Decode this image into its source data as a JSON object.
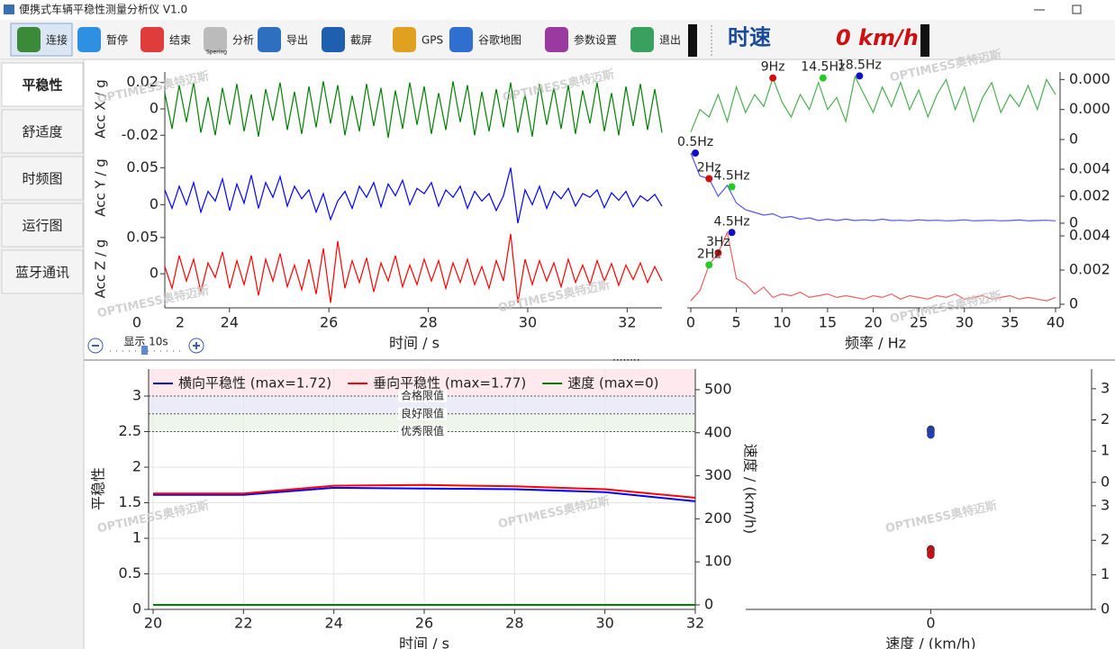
{
  "window": {
    "title": "便携式车辆平稳性测量分析仪 V1.0"
  },
  "toolbar": {
    "buttons": [
      "连接",
      "暂停",
      "结束",
      "分析",
      "导出",
      "截屏",
      "GPS",
      "谷歌地图",
      "参数设置",
      "退出"
    ],
    "icon_caption": "Spering",
    "speed_label": "时速",
    "speed_value": "0 km/h"
  },
  "tabs": [
    "平稳性",
    "舒适度",
    "时频图",
    "运行图",
    "蓝牙通讯"
  ],
  "watermark": "OPTIMESS奥特迈斯",
  "time_plot": {
    "type": "line",
    "x_label": "时间 / s",
    "xlim": [
      22.7,
      32.7
    ],
    "xticks": [
      24,
      26,
      28,
      30,
      32
    ],
    "clipped_tick_labels": [
      "0",
      "2"
    ],
    "zoom_label": "显示 10s",
    "panels": [
      {
        "name": "Acc X / g",
        "color": "#008000",
        "ylim": [
          -0.028,
          0.028
        ],
        "yticks": [
          {
            "value": 0.02,
            "label": "0.02"
          },
          0,
          {
            "value": -0.02,
            "label": "-0.02"
          }
        ],
        "values": [
          0.012,
          -0.015,
          0.018,
          -0.01,
          0.02,
          -0.018,
          0.009,
          -0.02,
          0.016,
          -0.012,
          0.019,
          -0.017,
          0.011,
          -0.021,
          0.015,
          -0.009,
          0.02,
          -0.016,
          0.013,
          -0.019,
          0.017,
          -0.014,
          0.021,
          -0.011,
          0.018,
          -0.02,
          0.01,
          -0.017,
          0.019,
          -0.013,
          0.016,
          -0.022,
          0.014,
          -0.015,
          0.02,
          -0.012,
          0.017,
          -0.019,
          0.012,
          -0.016,
          0.021,
          -0.01,
          0.018,
          -0.02,
          0.013,
          -0.017,
          0.015,
          -0.014,
          0.02,
          -0.018,
          0.011,
          -0.021,
          0.019,
          -0.012,
          0.016,
          -0.015,
          0.018,
          -0.019,
          0.014,
          -0.011,
          0.02,
          -0.017,
          0.012,
          -0.02,
          0.017,
          -0.013,
          0.019,
          -0.016,
          0.015,
          -0.018
        ]
      },
      {
        "name": "Acc Y / g",
        "color": "#0000ff",
        "ylim": [
          -0.03,
          0.076
        ],
        "yticks": [
          0.05,
          0
        ],
        "values": [
          0.02,
          -0.005,
          0.025,
          0.0,
          0.03,
          -0.01,
          0.018,
          0.005,
          0.035,
          -0.008,
          0.028,
          0.002,
          0.04,
          -0.005,
          0.03,
          0.01,
          0.038,
          -0.002,
          0.025,
          0.008,
          0.02,
          -0.01,
          0.015,
          -0.02,
          0.005,
          0.018,
          -0.005,
          0.025,
          0.01,
          0.03,
          -0.003,
          0.028,
          0.012,
          0.033,
          0.0,
          0.022,
          0.015,
          0.03,
          -0.002,
          0.02,
          0.01,
          0.025,
          -0.005,
          0.018,
          0.005,
          0.015,
          -0.008,
          0.012,
          0.05,
          -0.025,
          0.02,
          0.0,
          0.025,
          -0.005,
          0.018,
          0.008,
          0.022,
          -0.002,
          0.015,
          0.01,
          0.02,
          -0.004,
          0.016,
          0.006,
          0.018,
          -0.003,
          0.012,
          0.005,
          0.014,
          -0.002
        ]
      },
      {
        "name": "Acc Z / g",
        "color": "#ff0000",
        "ylim": [
          -0.047,
          0.061
        ],
        "yticks": [
          0.05,
          0
        ],
        "values": [
          0.01,
          -0.02,
          0.025,
          -0.01,
          0.02,
          -0.025,
          0.015,
          -0.005,
          0.03,
          -0.02,
          0.018,
          -0.015,
          0.025,
          -0.03,
          0.02,
          -0.01,
          0.028,
          -0.018,
          0.012,
          -0.022,
          0.02,
          -0.028,
          0.035,
          -0.04,
          0.045,
          -0.02,
          0.018,
          -0.012,
          0.022,
          -0.025,
          0.015,
          -0.01,
          0.025,
          -0.018,
          0.012,
          -0.015,
          0.02,
          -0.01,
          0.018,
          -0.02,
          0.015,
          -0.012,
          0.02,
          -0.015,
          0.01,
          -0.02,
          0.018,
          -0.01,
          0.055,
          -0.04,
          0.02,
          -0.015,
          0.018,
          -0.01,
          0.015,
          -0.018,
          0.02,
          -0.012,
          0.012,
          -0.015,
          0.018,
          -0.01,
          0.014,
          -0.016,
          0.012,
          -0.008,
          0.015,
          -0.012,
          0.01,
          -0.01
        ]
      }
    ]
  },
  "spectrum_plot": {
    "type": "line",
    "x_label": "频率 / Hz",
    "xlim": [
      0,
      40
    ],
    "xticks": [
      0,
      5,
      10,
      15,
      20,
      25,
      30,
      35,
      40
    ],
    "x": [
      0,
      1,
      2,
      3,
      4,
      5,
      6,
      7,
      8,
      9,
      10,
      11,
      12,
      13,
      14,
      15,
      16,
      17,
      18,
      19,
      20,
      21,
      22,
      23,
      24,
      25,
      26,
      27,
      28,
      29,
      30,
      31,
      32,
      33,
      34,
      35,
      36,
      37,
      38,
      39,
      40
    ],
    "panels": [
      {
        "color": "#4caf50",
        "ylim": [
          -3e-05,
          0.00045
        ],
        "yticks": [
          {
            "value": 0.0004,
            "label": "0.000"
          },
          {
            "value": 0.0002,
            "label": "0.000"
          },
          0
        ],
        "values": [
          5e-05,
          0.0002,
          0.00015,
          0.0003,
          0.00012,
          0.00035,
          0.00018,
          0.0003,
          0.00022,
          0.00041,
          0.00025,
          0.00015,
          0.0003,
          0.0002,
          0.00038,
          0.0002,
          0.00028,
          0.00012,
          0.00042,
          0.0003,
          0.00018,
          0.00035,
          0.00022,
          0.00038,
          0.0002,
          0.00033,
          0.00015,
          0.0003,
          0.0004,
          0.0002,
          0.00035,
          0.00012,
          0.00028,
          0.00038,
          0.00018,
          0.0003,
          0.00022,
          0.00036,
          0.0002,
          0.0004,
          0.0003
        ],
        "peaks": [
          {
            "label": "9Hz",
            "x": 9,
            "y": 0.00041,
            "color": "#d01010"
          },
          {
            "label": "14.5Hz",
            "x": 14.5,
            "y": 0.00041,
            "color": "#22cc22"
          },
          {
            "label": "18.5Hz",
            "x": 18.5,
            "y": 0.000424,
            "color": "#1010c0"
          }
        ]
      },
      {
        "color": "#5555ff",
        "ylim": [
          -0.00027,
          0.00587
        ],
        "yticks": [
          {
            "value": 0.004,
            "label": "0.004"
          },
          {
            "value": 0.002,
            "label": "0.002"
          },
          0
        ],
        "values": [
          0.0052,
          0.0035,
          0.0033,
          0.002,
          0.0028,
          0.0015,
          0.001,
          0.0008,
          0.0006,
          0.0007,
          0.0004,
          0.0005,
          0.0003,
          0.0004,
          0.0002,
          0.0003,
          0.0002,
          0.0003,
          0.0002,
          0.00025,
          0.0002,
          0.0003,
          0.0002,
          0.00022,
          0.00018,
          0.00025,
          0.0002,
          0.00022,
          0.00018,
          0.0002,
          0.00025,
          0.00018,
          0.0002,
          0.00022,
          0.00018,
          0.0002,
          0.00024,
          0.00018,
          0.0002,
          0.00022,
          0.00018
        ],
        "peaks": [
          {
            "label": "0.5Hz",
            "x": 0.5,
            "y": 0.0052,
            "color": "#1010c0"
          },
          {
            "label": "2Hz",
            "x": 2,
            "y": 0.0033,
            "color": "#d01010"
          },
          {
            "label": "4.5Hz",
            "x": 4.5,
            "y": 0.0027,
            "color": "#22cc22"
          }
        ]
      },
      {
        "color": "#f06060",
        "ylim": [
          -0.00021,
          0.00453
        ],
        "yticks": [
          {
            "value": 0.004,
            "label": "0.004"
          },
          {
            "value": 0.002,
            "label": "0.002"
          },
          0
        ],
        "values": [
          0.0002,
          0.0008,
          0.0023,
          0.003,
          0.0042,
          0.0015,
          0.0012,
          0.0006,
          0.001,
          0.0004,
          0.0006,
          0.0005,
          0.0007,
          0.0004,
          0.0005,
          0.0006,
          0.0004,
          0.0005,
          0.0004,
          0.0003,
          0.0005,
          0.0004,
          0.0006,
          0.0003,
          0.0005,
          0.0004,
          0.0003,
          0.0005,
          0.0004,
          0.0006,
          0.0003,
          0.0004,
          0.0005,
          0.0003,
          0.0004,
          0.0005,
          0.0003,
          0.0004,
          0.0003,
          0.0002,
          0.0004
        ],
        "peaks": [
          {
            "label": "4.5Hz",
            "x": 4.5,
            "y": 0.0042,
            "color": "#1010c0"
          },
          {
            "label": "3Hz",
            "x": 3,
            "y": 0.003,
            "color": "#d01010"
          },
          {
            "label": "2Hz",
            "x": 2,
            "y": 0.0023,
            "color": "#22cc22"
          }
        ]
      }
    ]
  },
  "stability_plot": {
    "type": "line",
    "x_label": "时间 / s",
    "y_label": "平稳性",
    "y2_label": "速度 / (km/h)",
    "grid": true,
    "xlim": [
      19.9,
      32
    ],
    "xticks": [
      20,
      22,
      24,
      26,
      28,
      30,
      32
    ],
    "ylim": [
      0,
      3.38
    ],
    "yticks": [
      0,
      0.5,
      1,
      1.5,
      2,
      2.5,
      3
    ],
    "y2lim": [
      -10.5,
      548
    ],
    "y2ticks": [
      0,
      100,
      200,
      300,
      400,
      500
    ],
    "x": [
      20,
      22,
      24,
      26,
      28,
      30,
      32
    ],
    "series": [
      {
        "name": "横向平稳性 (max=1.72)",
        "color": "#0000ff",
        "values": [
          1.61,
          1.61,
          1.71,
          1.7,
          1.69,
          1.65,
          1.52
        ]
      },
      {
        "name": "垂向平稳性 (max=1.77)",
        "color": "#ff0000",
        "values": [
          1.63,
          1.63,
          1.74,
          1.75,
          1.73,
          1.69,
          1.57
        ]
      },
      {
        "name": "速度 (max=0)",
        "color": "#008000",
        "axis": "y2",
        "values": [
          0,
          0,
          0,
          0,
          0,
          0,
          0
        ]
      }
    ],
    "limits": [
      {
        "label": "合格限值",
        "value": 3,
        "color": "#fde9ee"
      },
      {
        "label": "良好限值",
        "value": 2.75,
        "color": "#ececf8"
      },
      {
        "label": "优秀限值",
        "value": 2.5,
        "color": "#eef6ec"
      }
    ]
  },
  "speed_scatter": {
    "type": "scatter",
    "x_label": "速度 / (km/h)",
    "xlim": [
      -1.07,
      0.93
    ],
    "xticks": [
      0
    ],
    "panels": [
      {
        "ylim": [
          -0.12,
          3.63
        ],
        "yticks": [
          0,
          1,
          2,
          3
        ],
        "color": "#1f3fbf",
        "x": [
          0,
          0,
          0,
          0,
          0
        ],
        "values": [
          1.61,
          1.7,
          1.69,
          1.65,
          1.52
        ]
      },
      {
        "ylim": [
          -0.08,
          3.44
        ],
        "yticks": [
          0,
          1,
          2,
          3
        ],
        "color": "#d01010",
        "x": [
          0,
          0,
          0,
          0,
          0,
          0
        ],
        "values": [
          1.63,
          1.74,
          1.75,
          1.73,
          1.69,
          1.57
        ]
      }
    ]
  }
}
